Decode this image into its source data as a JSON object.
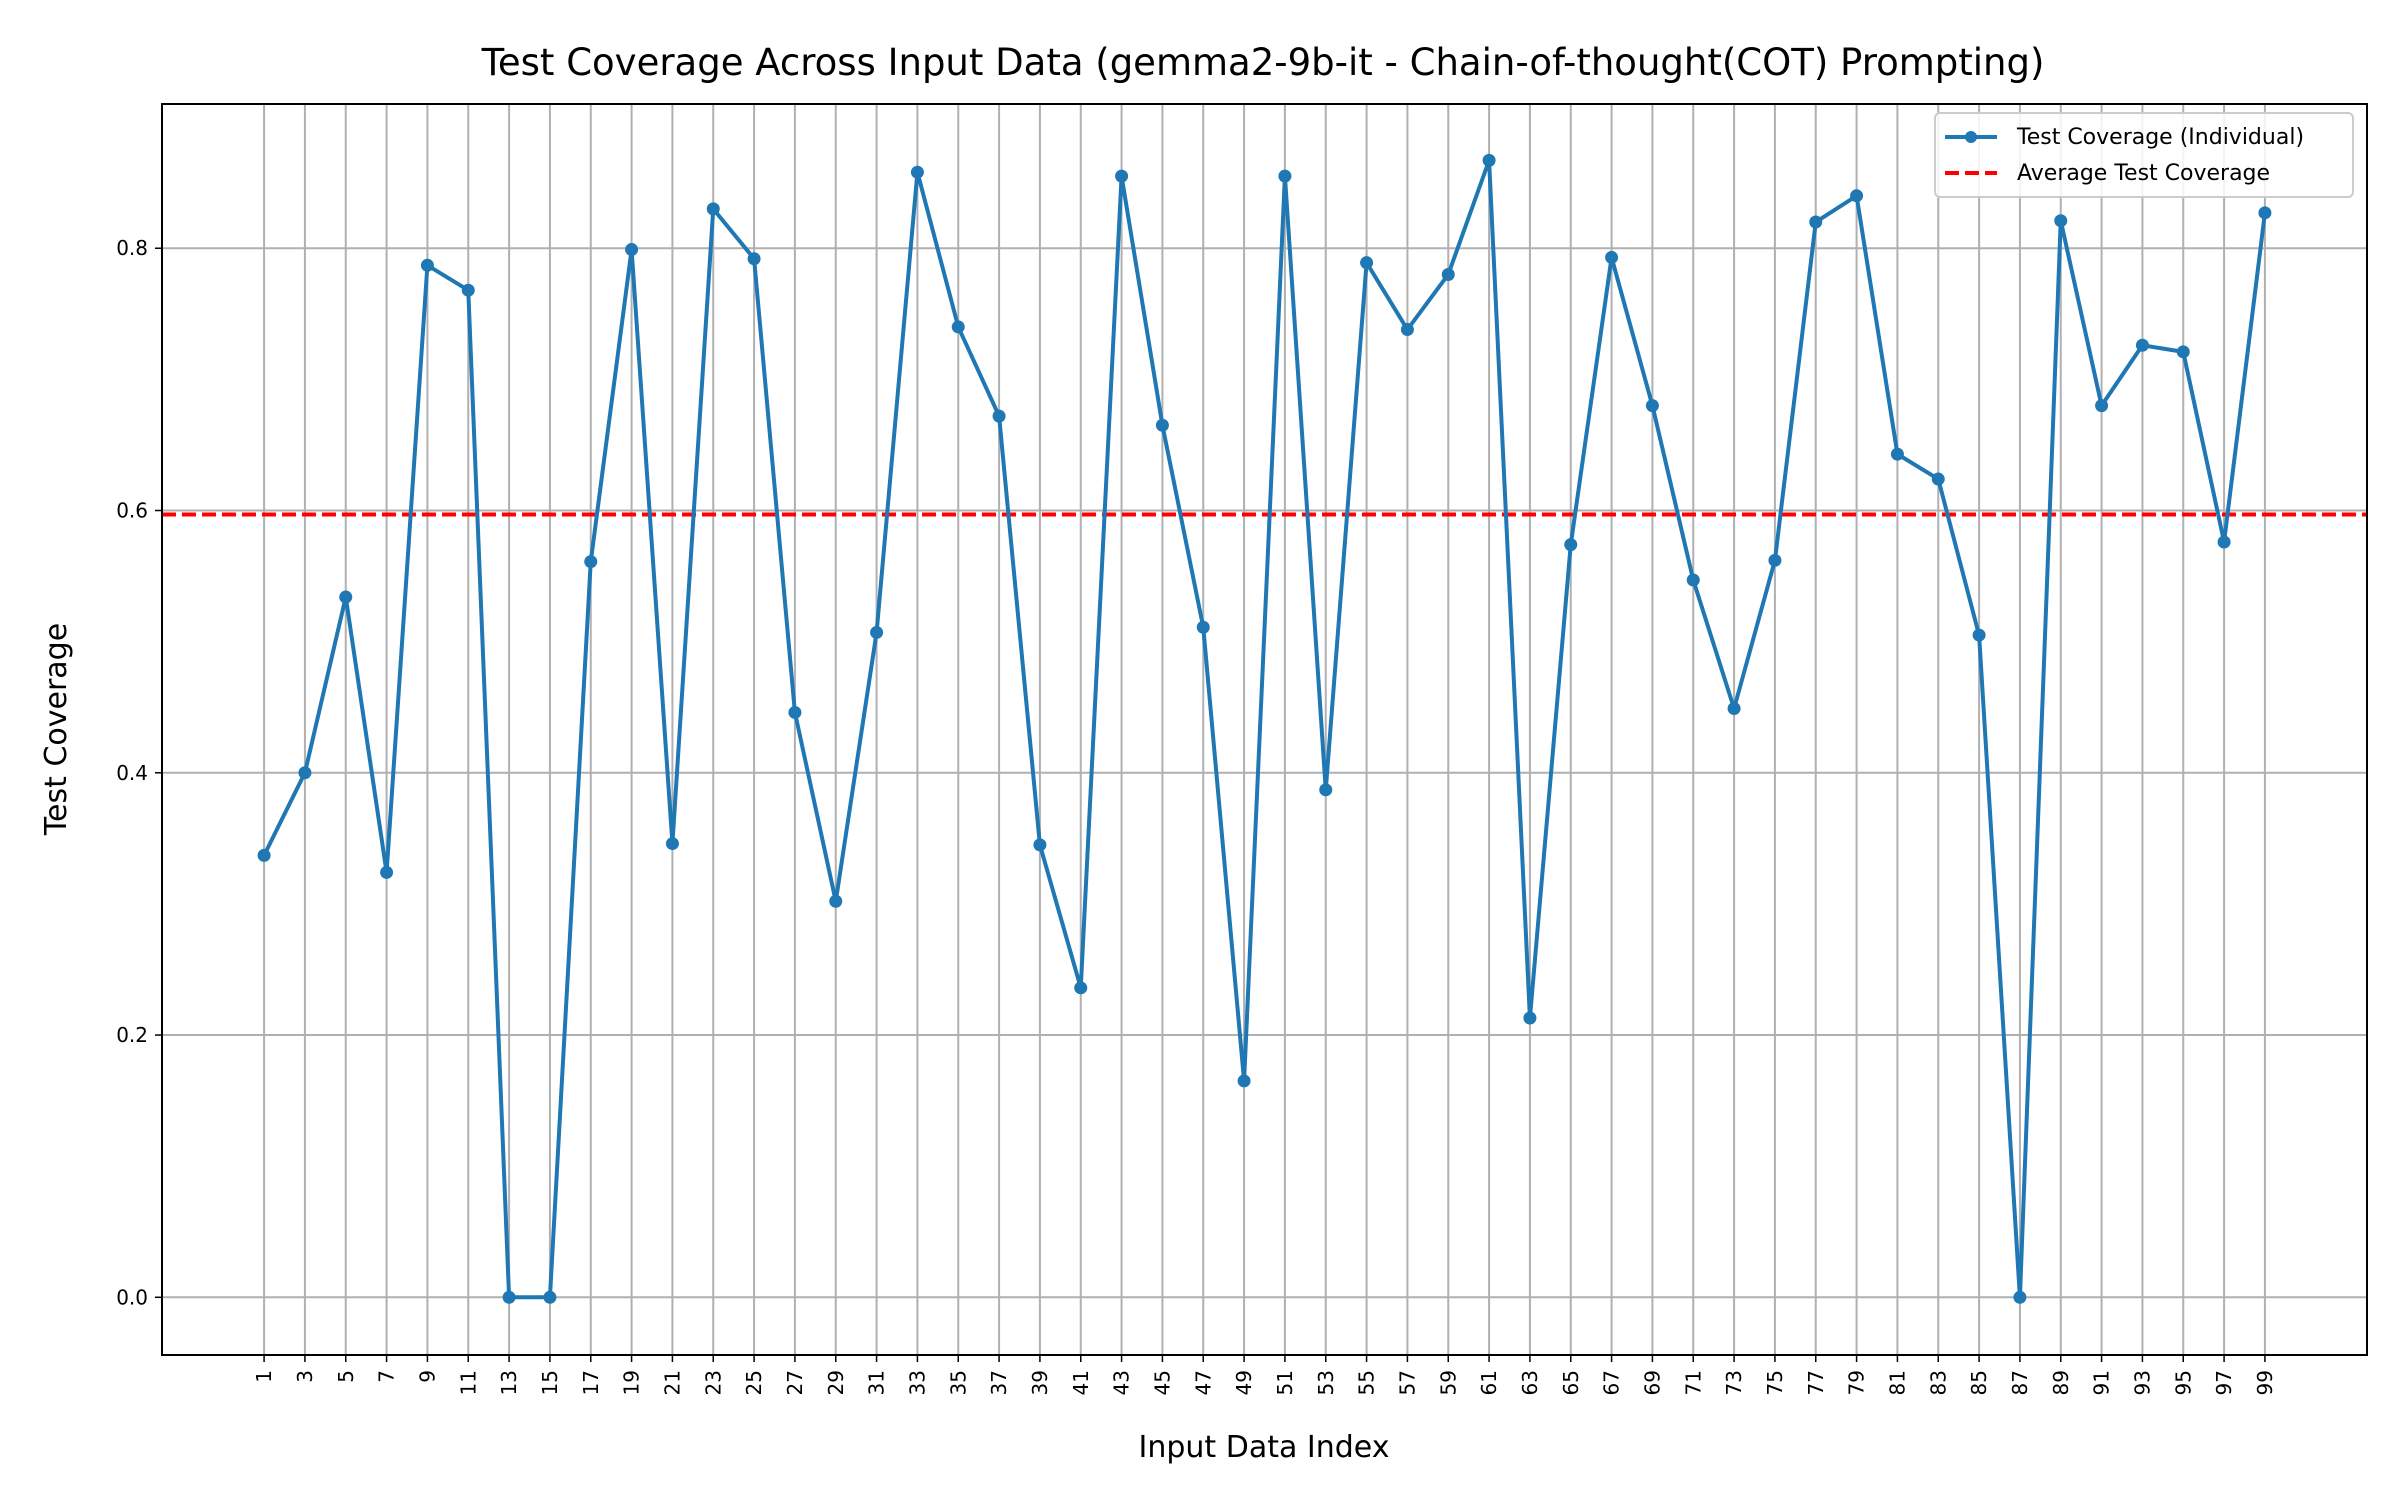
{
  "chart_data": {
    "type": "line",
    "title": "Test Coverage Across Input Data (gemma2-9b-it - Chain-of-thought(COT) Prompting)",
    "xlabel": "Input Data Index",
    "ylabel": "Test Coverage",
    "x": [
      1,
      3,
      5,
      7,
      9,
      11,
      13,
      15,
      17,
      19,
      21,
      23,
      25,
      27,
      29,
      31,
      33,
      35,
      37,
      39,
      41,
      43,
      45,
      47,
      49,
      51,
      53,
      55,
      57,
      59,
      61,
      63,
      65,
      67,
      69,
      71,
      73,
      75,
      77,
      79,
      81,
      83,
      85,
      87,
      89,
      91,
      93,
      95,
      97,
      99
    ],
    "x_ticks": [
      "1",
      "3",
      "5",
      "7",
      "9",
      "11",
      "13",
      "15",
      "17",
      "19",
      "21",
      "23",
      "25",
      "27",
      "29",
      "31",
      "33",
      "35",
      "37",
      "39",
      "41",
      "43",
      "45",
      "47",
      "49",
      "51",
      "53",
      "55",
      "57",
      "59",
      "61",
      "63",
      "65",
      "67",
      "69",
      "71",
      "73",
      "75",
      "77",
      "79",
      "81",
      "83",
      "85",
      "87",
      "89",
      "91",
      "93",
      "95",
      "97",
      "99"
    ],
    "xlim": [
      -4,
      104
    ],
    "ylim": [
      -0.044,
      0.91
    ],
    "y_ticks": [
      0.0,
      0.2,
      0.4,
      0.6,
      0.8
    ],
    "y_tick_labels": [
      "0.0",
      "0.2",
      "0.4",
      "0.6",
      "0.8"
    ],
    "series": [
      {
        "name": "Test Coverage (Individual)",
        "color": "#1f77b4",
        "marker": "circle",
        "values": [
          0.337,
          0.4,
          0.534,
          0.324,
          0.787,
          0.768,
          0.0,
          0.0,
          0.561,
          0.799,
          0.346,
          0.83,
          0.792,
          0.446,
          0.302,
          0.507,
          0.858,
          0.74,
          0.672,
          0.345,
          0.236,
          0.855,
          0.665,
          0.511,
          0.165,
          0.855,
          0.387,
          0.789,
          0.738,
          0.78,
          0.867,
          0.213,
          0.574,
          0.793,
          0.68,
          0.547,
          0.449,
          0.562,
          0.82,
          0.84,
          0.643,
          0.624,
          0.505,
          0.0,
          0.821,
          0.68,
          0.726,
          0.721,
          0.576,
          0.827
        ]
      }
    ],
    "reference_lines": [
      {
        "name": "Average Test Coverage",
        "value": 0.597,
        "color": "#ff0000",
        "style": "dashed"
      }
    ],
    "grid": true,
    "legend_position": "top-right"
  }
}
